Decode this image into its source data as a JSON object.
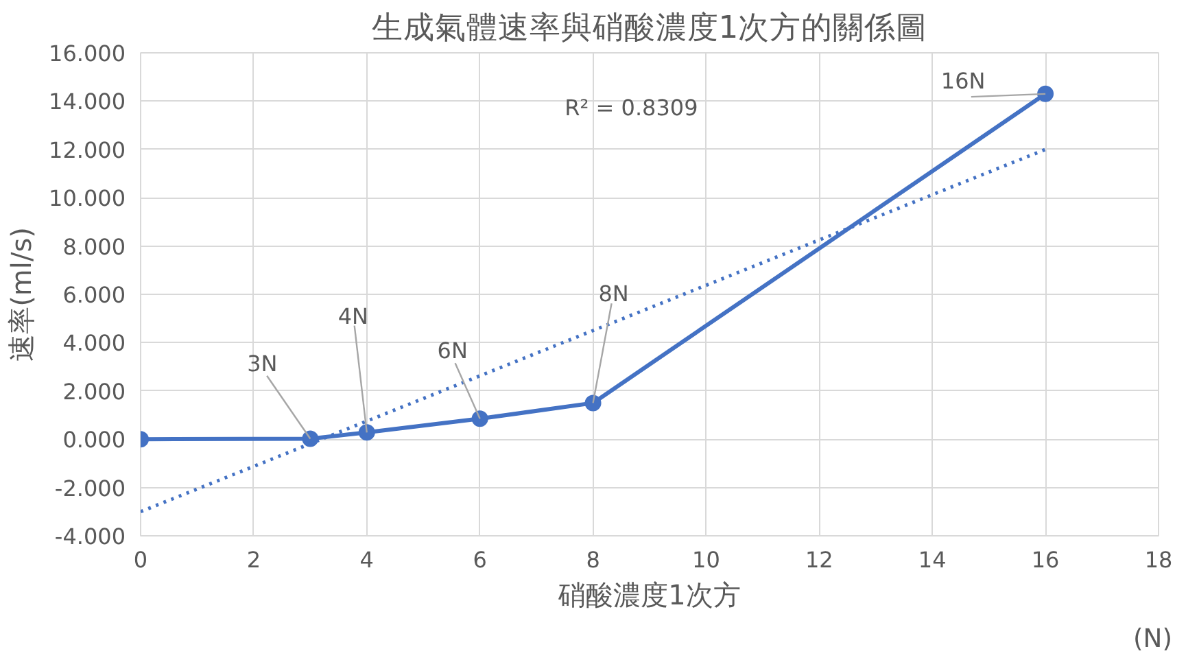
{
  "chart_data": {
    "type": "line",
    "title": "生成氣體速率與硝酸濃度1次方的關係圖",
    "xlabel": "硝酸濃度1次方",
    "ylabel": "速率(ml/s)",
    "series": [
      {
        "color": "#4472c4",
        "x": [
          0,
          3,
          4,
          6,
          8,
          16
        ],
        "values": [
          0.0,
          0.02,
          0.28,
          0.85,
          1.5,
          14.3
        ],
        "marker": "circle",
        "line_style": "solid"
      },
      {
        "color": "#4472c4",
        "x": [
          0,
          16
        ],
        "values": [
          -3.0,
          12.0
        ],
        "marker": "none",
        "line_style": "dotted"
      }
    ],
    "annotations": [
      {
        "text": "3N",
        "x": 3,
        "y": 0.02
      },
      {
        "text": "4N",
        "x": 4,
        "y": 0.28
      },
      {
        "text": "6N",
        "x": 6,
        "y": 0.85
      },
      {
        "text": "8N",
        "x": 8,
        "y": 1.5
      },
      {
        "text": "16N",
        "x": 16,
        "y": 14.3
      },
      "R² = 0.8309",
      "(N)"
    ],
    "xlim": [
      0,
      18
    ],
    "xticks": [
      0,
      2,
      4,
      6,
      8,
      10,
      12,
      14,
      16,
      18
    ],
    "ylim": [
      -4,
      16
    ],
    "yticks": [
      {
        "value": -4,
        "label": "-4.000"
      },
      {
        "value": -2,
        "label": "-2.000"
      },
      {
        "value": 0,
        "label": "0.000"
      },
      {
        "value": 2,
        "label": "2.000"
      },
      {
        "value": 4,
        "label": "4.000"
      },
      {
        "value": 6,
        "label": "6.000"
      },
      {
        "value": 8,
        "label": "8.000"
      },
      {
        "value": 10,
        "label": "10.000"
      },
      {
        "value": 12,
        "label": "12.000"
      },
      {
        "value": 14,
        "label": "14.000"
      },
      {
        "value": 16,
        "label": "16.000"
      }
    ],
    "grid": true
  }
}
